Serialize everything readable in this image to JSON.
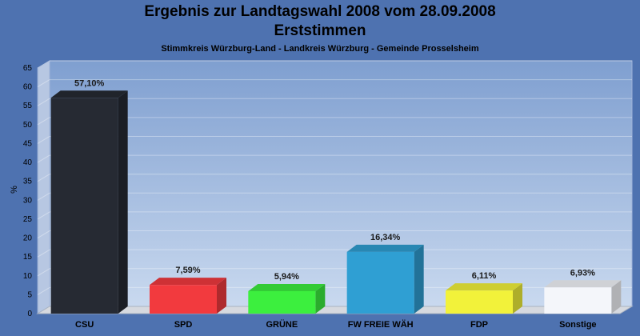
{
  "title": "Ergebnis zur Landtagswahl 2008 vom 28.09.2008",
  "subtitle": "Erststimmen",
  "subsubtitle": "Stimmkreis Würzburg-Land - Landkreis Würzburg - Gemeinde Prosselsheim",
  "chart_data": {
    "type": "bar",
    "title": "Ergebnis zur Landtagswahl 2008 vom 28.09.2008",
    "subtitle": "Erststimmen",
    "xlabel": "",
    "ylabel": "%",
    "ylim": [
      0,
      65
    ],
    "yticks": [
      0,
      5,
      10,
      15,
      20,
      25,
      30,
      35,
      40,
      45,
      50,
      55,
      60,
      65
    ],
    "grid": true,
    "categories": [
      "CSU",
      "SPD",
      "GRÜNE",
      "FW FREIE WÄH",
      "FDP",
      "Sonstige"
    ],
    "values": [
      57.1,
      7.59,
      5.94,
      16.34,
      6.11,
      6.93
    ],
    "value_labels": [
      "57,10%",
      "7,59%",
      "5,94%",
      "16,34%",
      "6,11%",
      "6,93%"
    ],
    "colors": [
      "#262a33",
      "#f23a3e",
      "#3cef3e",
      "#2f9fd3",
      "#f2f23a",
      "#f4f6fa"
    ]
  }
}
